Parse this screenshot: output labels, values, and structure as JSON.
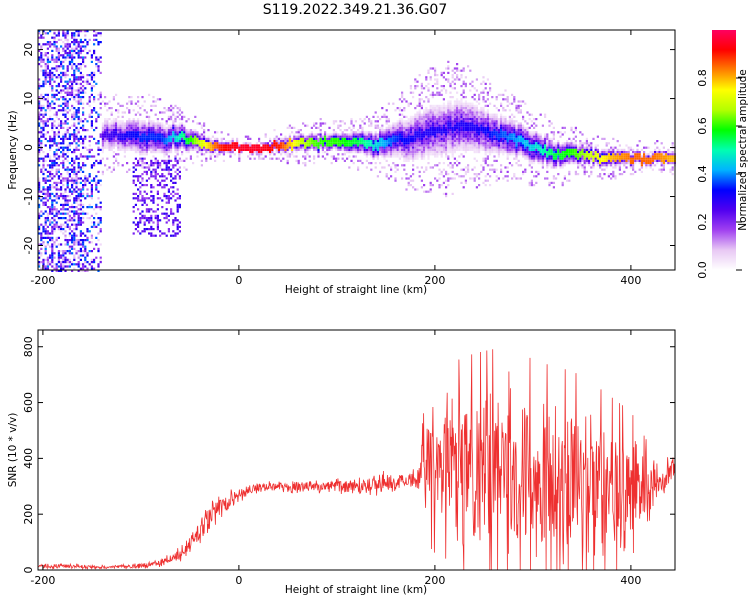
{
  "title": "S119.2022.349.21.36.G07",
  "chart_data": [
    {
      "type": "heatmap",
      "xlabel": "Height of straight line (km)",
      "ylabel": "Frequency (Hz)",
      "xlim": [
        -205,
        445
      ],
      "ylim": [
        -25,
        24
      ],
      "xticks": [
        -200,
        0,
        200,
        400
      ],
      "yticks": [
        -20,
        -10,
        0,
        10,
        20
      ],
      "colorbar": {
        "label": "Normalized spectral amplitude",
        "range": [
          0,
          1
        ],
        "ticks": [
          "0.0",
          "0.2",
          "0.4",
          "0.6",
          "0.8"
        ],
        "colormap": [
          "#ffffff",
          "#e8c8f4",
          "#a040f0",
          "#5000f0",
          "#0000ff",
          "#00b4ff",
          "#00ffb0",
          "#00ff00",
          "#b4ff00",
          "#ffff00",
          "#ff8000",
          "#ff0000",
          "#ff0060"
        ]
      },
      "trace": {
        "x": [
          -140,
          -120,
          -100,
          -80,
          -60,
          -40,
          -20,
          0,
          20,
          40,
          60,
          80,
          100,
          120,
          140,
          160,
          180,
          200,
          220,
          240,
          260,
          280,
          300,
          320,
          340,
          360,
          380,
          400,
          420,
          440
        ],
        "freq": [
          2.5,
          2.8,
          2.5,
          2.0,
          2.5,
          1.0,
          0.4,
          0.3,
          0.3,
          0.5,
          1.0,
          1.2,
          1.3,
          1.2,
          1.0,
          1.5,
          2.5,
          3.5,
          4.5,
          4.0,
          3.0,
          2.0,
          0.5,
          -0.8,
          -1.2,
          -1.5,
          -1.8,
          -2.0,
          -2.0,
          -1.8
        ],
        "spread": [
          3.5,
          3.5,
          4.0,
          3.5,
          3.0,
          2.0,
          1.5,
          1.0,
          1.0,
          1.5,
          2.0,
          2.0,
          2.0,
          2.5,
          3.0,
          4.0,
          5.5,
          6.0,
          6.0,
          5.5,
          4.5,
          4.0,
          3.5,
          3.0,
          2.5,
          2.0,
          2.0,
          1.5,
          1.5,
          1.5
        ],
        "amplitude": [
          0.25,
          0.3,
          0.35,
          0.35,
          0.5,
          0.7,
          0.9,
          0.95,
          0.95,
          0.9,
          0.7,
          0.6,
          0.6,
          0.55,
          0.45,
          0.35,
          0.3,
          0.3,
          0.3,
          0.3,
          0.35,
          0.4,
          0.45,
          0.55,
          0.6,
          0.7,
          0.8,
          0.85,
          0.85,
          0.8
        ]
      }
    },
    {
      "type": "line",
      "xlabel": "Height of straight line (km)",
      "ylabel": "SNR (10 * v/v)",
      "xlim": [
        -205,
        445
      ],
      "ylim": [
        0,
        860
      ],
      "xticks": [
        -200,
        0,
        200,
        400
      ],
      "yticks": [
        0,
        200,
        400,
        600,
        800
      ],
      "color": "#ee3030",
      "x": [
        -205,
        -180,
        -160,
        -140,
        -120,
        -100,
        -80,
        -60,
        -50,
        -40,
        -30,
        -20,
        -10,
        0,
        10,
        20,
        30,
        40,
        50,
        60,
        80,
        100,
        120,
        140,
        160,
        170,
        180,
        185,
        190,
        200,
        210,
        220,
        240,
        260,
        280,
        300,
        320,
        340,
        360,
        380,
        400,
        420,
        430,
        440,
        445
      ],
      "mean": [
        12,
        15,
        12,
        10,
        12,
        15,
        25,
        55,
        90,
        140,
        180,
        220,
        240,
        270,
        285,
        295,
        300,
        300,
        300,
        300,
        300,
        300,
        300,
        310,
        315,
        320,
        330,
        340,
        360,
        380,
        380,
        380,
        360,
        360,
        350,
        340,
        330,
        330,
        320,
        300,
        280,
        280,
        330,
        360,
        360
      ],
      "noise": [
        8,
        8,
        6,
        5,
        6,
        8,
        12,
        25,
        35,
        45,
        50,
        45,
        35,
        25,
        18,
        15,
        15,
        15,
        18,
        20,
        20,
        20,
        25,
        35,
        30,
        25,
        30,
        60,
        160,
        200,
        210,
        230,
        260,
        270,
        270,
        260,
        250,
        240,
        220,
        200,
        180,
        100,
        60,
        50,
        50
      ]
    }
  ]
}
